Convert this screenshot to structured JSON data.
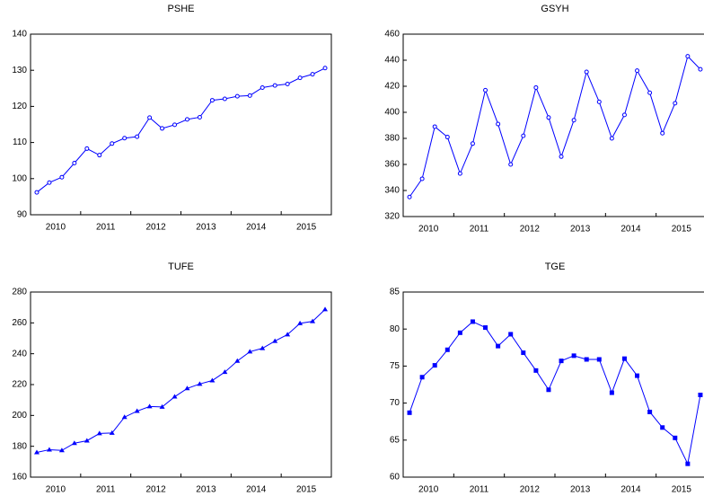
{
  "chart_data": [
    {
      "type": "line",
      "title": "PSHE",
      "color": "#0000ff",
      "marker": "circle",
      "categories": [
        "2010",
        null,
        null,
        null,
        "2011",
        null,
        null,
        null,
        "2012",
        null,
        null,
        null,
        "2013",
        null,
        null,
        null,
        "2014",
        null,
        null,
        null,
        "2015",
        null,
        null,
        null
      ],
      "values": [
        96.2,
        98.9,
        100.4,
        104.3,
        108.3,
        106.5,
        109.7,
        111.2,
        111.6,
        116.9,
        113.9,
        114.9,
        116.4,
        117.0,
        121.7,
        122.1,
        122.8,
        123.0,
        125.2,
        125.8,
        126.2,
        127.9,
        128.9,
        130.6
      ],
      "ylim": [
        90,
        140
      ],
      "yticks": [
        90,
        100,
        110,
        120,
        130,
        140
      ]
    },
    {
      "type": "line",
      "title": "GSYH",
      "color": "#0000ff",
      "marker": "open-circle",
      "categories": [
        "2010",
        null,
        null,
        null,
        "2011",
        null,
        null,
        null,
        "2012",
        null,
        null,
        null,
        "2013",
        null,
        null,
        null,
        "2014",
        null,
        null,
        null,
        "2015",
        null,
        null,
        null
      ],
      "values": [
        335,
        349,
        389,
        381,
        353,
        376,
        417,
        391,
        360,
        382,
        419,
        396,
        366,
        394,
        431,
        408,
        380,
        398,
        432,
        415,
        384,
        407,
        443,
        433
      ],
      "ylim": [
        320,
        460
      ],
      "yticks": [
        320,
        340,
        360,
        380,
        400,
        420,
        440,
        460
      ]
    },
    {
      "type": "line",
      "title": "TUFE",
      "color": "#0000ff",
      "marker": "triangle",
      "categories": [
        "2010",
        null,
        null,
        null,
        "2011",
        null,
        null,
        null,
        "2012",
        null,
        null,
        null,
        "2013",
        null,
        null,
        null,
        "2014",
        null,
        null,
        null,
        "2015",
        null,
        null,
        null
      ],
      "values": [
        176.0,
        177.8,
        177.3,
        182.0,
        183.6,
        188.3,
        188.6,
        198.9,
        202.8,
        205.8,
        205.5,
        212.1,
        217.5,
        220.4,
        222.6,
        228.1,
        235.3,
        241.3,
        243.5,
        248.2,
        252.4,
        259.7,
        261.0,
        268.7
      ],
      "ylim": [
        160,
        280
      ],
      "yticks": [
        160,
        180,
        200,
        220,
        240,
        260,
        280
      ]
    },
    {
      "type": "line",
      "title": "TGE",
      "color": "#0000ff",
      "marker": "square",
      "categories": [
        "2010",
        null,
        null,
        null,
        "2011",
        null,
        null,
        null,
        "2012",
        null,
        null,
        null,
        "2013",
        null,
        null,
        null,
        "2014",
        null,
        null,
        null,
        "2015",
        null,
        null,
        null
      ],
      "values": [
        68.7,
        73.5,
        75.1,
        77.2,
        79.5,
        81.0,
        80.2,
        77.7,
        79.3,
        76.8,
        74.4,
        71.8,
        75.7,
        76.4,
        75.9,
        75.9,
        71.4,
        76.0,
        73.7,
        68.8,
        66.7,
        65.3,
        61.8,
        71.1
      ],
      "ylim": [
        60,
        85
      ],
      "yticks": [
        60,
        65,
        70,
        75,
        80,
        85
      ]
    }
  ]
}
